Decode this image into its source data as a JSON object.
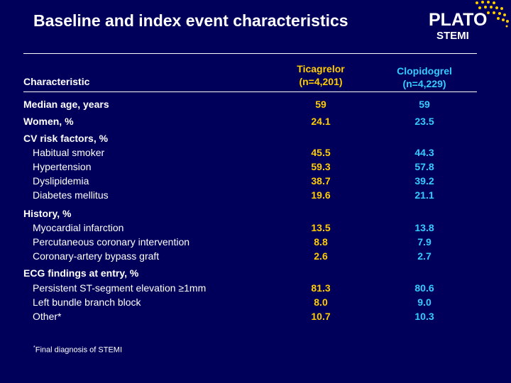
{
  "slide": {
    "title": "Baseline and index event characteristics",
    "logo": {
      "word": "PLATO",
      "sub": "STEMI"
    }
  },
  "table": {
    "col_characteristic": "Characteristic",
    "col_ticagrelor": {
      "name": "Ticagrelor",
      "n": "(n=4,201)"
    },
    "col_clopidogrel": {
      "name": "Clopidogrel",
      "n": "(n=4,229)"
    },
    "rows": [
      {
        "label": "Median age, years",
        "tic": "59",
        "clo": "59"
      },
      {
        "label": "Women, %",
        "tic": "24.1",
        "clo": "23.5"
      },
      {
        "label": "CV risk factors, %",
        "tic": "",
        "clo": ""
      },
      {
        "label": "Habitual smoker",
        "tic": "45.5",
        "clo": "44.3"
      },
      {
        "label": "Hypertension",
        "tic": "59.3",
        "clo": "57.8"
      },
      {
        "label": "Dyslipidemia",
        "tic": "38.7",
        "clo": "39.2"
      },
      {
        "label": "Diabetes mellitus",
        "tic": "19.6",
        "clo": "21.1"
      },
      {
        "label": "History, %",
        "tic": "",
        "clo": ""
      },
      {
        "label": "Myocardial infarction",
        "tic": "13.5",
        "clo": "13.8"
      },
      {
        "label": "Percutaneous coronary intervention",
        "tic": "8.8",
        "clo": "7.9"
      },
      {
        "label": "Coronary-artery bypass graft",
        "tic": "2.6",
        "clo": "2.7"
      },
      {
        "label": "ECG findings at entry, %",
        "tic": "",
        "clo": ""
      },
      {
        "label": "Persistent ST-segment elevation ≥1mm",
        "tic": "81.3",
        "clo": "80.6"
      },
      {
        "label": "Left bundle branch block",
        "tic": "8.0",
        "clo": "9.0"
      },
      {
        "label": "Other*",
        "tic": "10.7",
        "clo": "10.3"
      }
    ]
  },
  "footnote": {
    "marker": "*",
    "text": "Final diagnosis of STEMI"
  },
  "colors": {
    "background": "#00005a",
    "ticagrelor": "#ffcc00",
    "clopidogrel": "#33ccff"
  }
}
